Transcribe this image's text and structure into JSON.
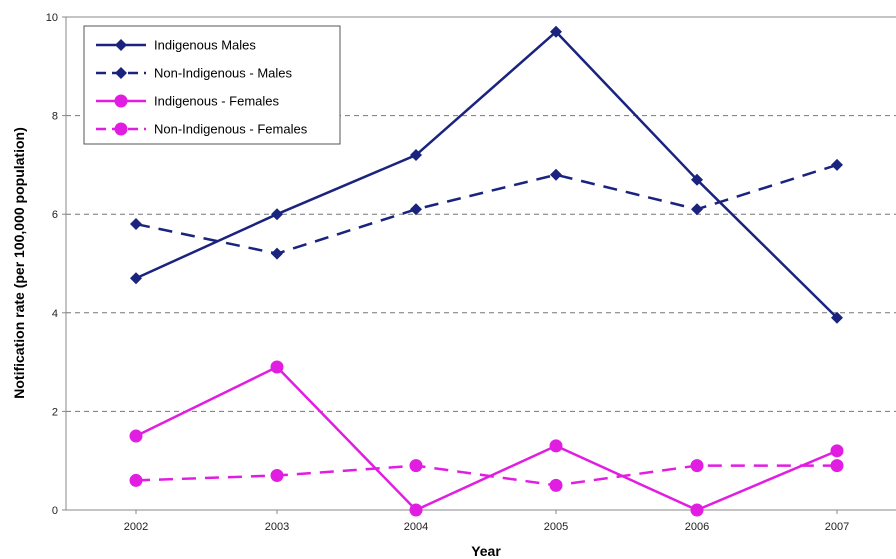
{
  "chart_data": {
    "type": "line",
    "title": "",
    "xlabel": "Year",
    "ylabel": "Notification rate (per 100,000 population)",
    "x": [
      "2002",
      "2003",
      "2004",
      "2005",
      "2006",
      "2007"
    ],
    "ylim": [
      0,
      10
    ],
    "yticks": [
      0,
      2,
      4,
      6,
      8,
      10
    ],
    "grid": "horizontal dashed",
    "legend_position": "top-left",
    "series": [
      {
        "name": "Indigenous Males",
        "values": [
          4.7,
          6.0,
          7.2,
          9.7,
          6.7,
          3.9
        ],
        "color": "#1a237e",
        "dash": "solid",
        "marker": "diamond"
      },
      {
        "name": "Non-Indigenous - Males",
        "values": [
          5.8,
          5.2,
          6.1,
          6.8,
          6.1,
          7.0
        ],
        "color": "#1a237e",
        "dash": "dashed",
        "marker": "diamond"
      },
      {
        "name": "Indigenous - Females",
        "values": [
          1.5,
          2.9,
          0.0,
          1.3,
          0.0,
          1.2
        ],
        "color": "#e21de2",
        "dash": "solid",
        "marker": "circle"
      },
      {
        "name": "Non-Indigenous - Females",
        "values": [
          0.6,
          0.7,
          0.9,
          0.5,
          0.9,
          0.9
        ],
        "color": "#e21de2",
        "dash": "dashed",
        "marker": "circle"
      }
    ]
  }
}
